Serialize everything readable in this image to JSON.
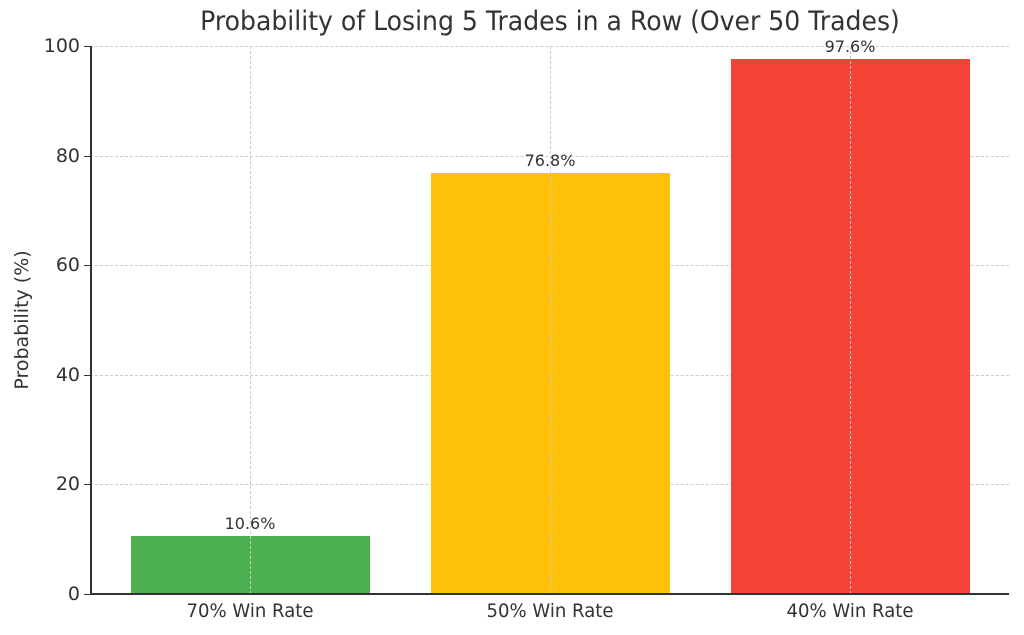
{
  "chart_data": {
    "type": "bar",
    "title": "Probability of Losing 5 Trades in a Row (Over 50 Trades)",
    "xlabel": "",
    "ylabel": "Probability (%)",
    "ylim": [
      0,
      100
    ],
    "yticks": [
      "0",
      "20",
      "40",
      "60",
      "80",
      "100"
    ],
    "categories": [
      "70% Win Rate",
      "50% Win Rate",
      "40% Win Rate"
    ],
    "values": [
      10.6,
      76.8,
      97.6
    ],
    "data_labels": [
      "10.6%",
      "76.8%",
      "97.6%"
    ],
    "colors": [
      "#4caf50",
      "#ffc107",
      "#f44336"
    ],
    "grid": true,
    "legend": null
  }
}
